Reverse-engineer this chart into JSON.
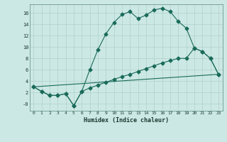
{
  "xlabel": "Humidex (Indice chaleur)",
  "bg_color": "#cce8e4",
  "grid_color": "#aed0cc",
  "line_color": "#1a6b5a",
  "xlim": [
    -0.5,
    23.5
  ],
  "ylim": [
    -1.2,
    17.5
  ],
  "xticks": [
    0,
    1,
    2,
    3,
    4,
    5,
    6,
    7,
    8,
    9,
    10,
    11,
    12,
    13,
    14,
    15,
    16,
    17,
    18,
    19,
    20,
    21,
    22,
    23
  ],
  "yticks": [
    0,
    2,
    4,
    6,
    8,
    10,
    12,
    14,
    16
  ],
  "ytick_labels": [
    "-0",
    "2",
    "4",
    "6",
    "8",
    "10",
    "12",
    "14",
    "16"
  ],
  "line1_x": [
    0,
    1,
    2,
    3,
    4,
    5,
    6,
    7,
    8,
    9,
    10,
    11,
    12,
    13,
    14,
    15,
    16,
    17,
    18,
    19,
    20,
    21,
    22,
    23
  ],
  "line1_y": [
    3.0,
    2.2,
    1.5,
    1.5,
    1.8,
    -0.3,
    2.2,
    6.0,
    9.5,
    12.3,
    14.3,
    15.7,
    16.2,
    15.0,
    15.6,
    16.5,
    16.8,
    16.2,
    14.5,
    13.3,
    9.8,
    9.2,
    8.0,
    5.2
  ],
  "line2_x": [
    0,
    1,
    2,
    3,
    4,
    5,
    6,
    7,
    8,
    9,
    10,
    11,
    12,
    13,
    14,
    15,
    16,
    17,
    18,
    19,
    20,
    21,
    22,
    23
  ],
  "line2_y": [
    3.0,
    2.2,
    1.5,
    1.5,
    1.8,
    -0.3,
    2.2,
    2.8,
    3.3,
    3.8,
    4.3,
    4.8,
    5.2,
    5.7,
    6.2,
    6.7,
    7.2,
    7.6,
    8.0,
    8.0,
    9.8,
    9.2,
    8.0,
    5.2
  ],
  "line3_x": [
    0,
    23
  ],
  "line3_y": [
    3.0,
    5.2
  ],
  "marker": "D",
  "marker_size": 2.5,
  "line_width": 0.8
}
